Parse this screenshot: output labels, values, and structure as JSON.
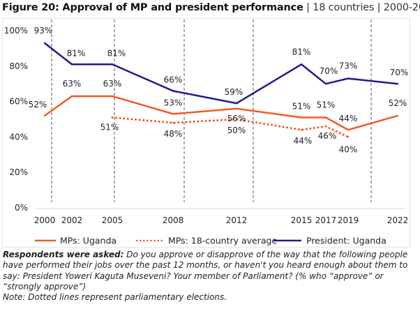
{
  "title": {
    "bold": "Figure 20: Approval of MP and president performance",
    "sep1": "|",
    "scope": "18 countries",
    "sep2": "|",
    "range": "2000-2022"
  },
  "colors": {
    "mps_uganda": "#f15a24",
    "mps_average": "#f15a24",
    "president_uganda": "#1f1a8f",
    "election_line": "#555555",
    "axis_line": "#d9d9d9"
  },
  "chart_data": {
    "type": "line",
    "title": "Approval of MP and president performance",
    "xlabel": "",
    "ylabel": "",
    "x": [
      2000,
      2002,
      2005,
      2008,
      2012,
      2015,
      2017,
      2019,
      2022
    ],
    "x_tick_labels": [
      "2000",
      "2002",
      "2005",
      "2008",
      "2012",
      "2015",
      "2017",
      "2019",
      "2022"
    ],
    "y_ticks": [
      0,
      20,
      40,
      60,
      80,
      100
    ],
    "y_tick_labels": [
      "0%",
      "20%",
      "40%",
      "60%",
      "80%",
      "100%"
    ],
    "ylim": [
      0,
      100
    ],
    "grid": false,
    "legend_position": "bottom",
    "series": [
      {
        "name": "MPs: Uganda",
        "style": "solid",
        "color": "#f15a24",
        "values": [
          52,
          63,
          63,
          53,
          56,
          51,
          51,
          44,
          52
        ],
        "labels": [
          "52%",
          "63%",
          "63%",
          "53%",
          "56%",
          "51%",
          "51%",
          "44%",
          "52%"
        ]
      },
      {
        "name": "MPs: 18-country average",
        "style": "dotted",
        "color": "#f15a24",
        "values": [
          null,
          null,
          51,
          48,
          50,
          44,
          46,
          40,
          null
        ],
        "labels": [
          null,
          null,
          "51%",
          "48%",
          "50%",
          "44%",
          "46%",
          "40%",
          null
        ]
      },
      {
        "name": "President: Uganda",
        "style": "solid",
        "color": "#1f1a8f",
        "values": [
          93,
          81,
          81,
          66,
          59,
          81,
          70,
          73,
          70
        ],
        "labels": [
          "93%",
          "81%",
          "81%",
          "66%",
          "59%",
          "81%",
          "70%",
          "73%",
          "70%"
        ]
      }
    ],
    "election_markers": [
      2001,
      2006,
      2011,
      2016,
      2021
    ],
    "annotations": [
      "Dotted lines represent parliamentary elections"
    ]
  },
  "legend": [
    {
      "label": "MPs: Uganda",
      "style": "solid",
      "color": "#f15a24"
    },
    {
      "label": "MPs: 18-country average",
      "style": "dotted",
      "color": "#f15a24"
    },
    {
      "label": "President: Uganda",
      "style": "solid",
      "color": "#1f1a8f"
    }
  ],
  "caption": {
    "lead": "Respondents were asked:",
    "question": " Do you approve or disapprove of the way that the following people have performed their jobs over the past 12 months, or haven't you heard enough about them to say: President Yoweri Kaguta Museveni? Your member of Parliament? (% who “approve” or “strongly approve”)",
    "note": "Note: Dotted lines represent parliamentary elections."
  }
}
